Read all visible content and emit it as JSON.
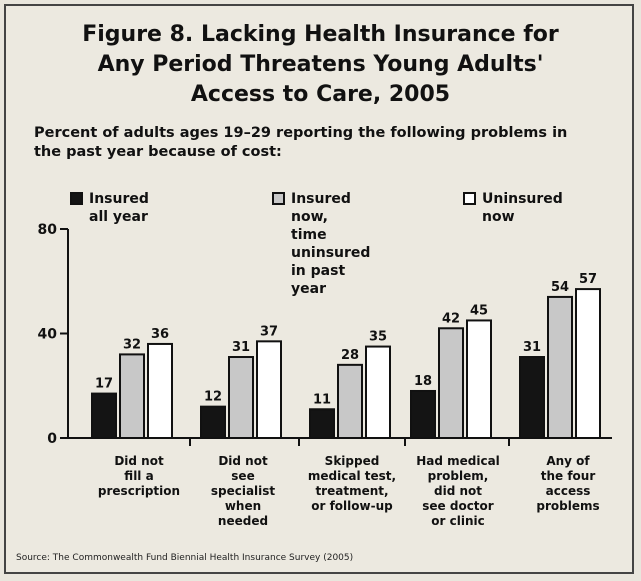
{
  "chart_data": {
    "type": "bar",
    "title": "Figure 8. Lacking Health Insurance for\nAny Period Threatens Young Adults'\nAccess to Care, 2005",
    "subtitle": "Percent of adults ages 19–29 reporting the following problems in the past year because of cost:",
    "categories": [
      "Did not\nfill a\nprescription",
      "Did not\nsee\nspecialist\nwhen\nneeded",
      "Skipped\nmedical test,\ntreatment,\nor follow-up",
      "Had medical\nproblem,\ndid not\nsee doctor\nor clinic",
      "Any of\nthe four\naccess\nproblems"
    ],
    "series": [
      {
        "name": "Insured all year",
        "values": [
          17,
          12,
          11,
          18,
          31
        ],
        "color": "#141414"
      },
      {
        "name": "Insured now,\ntime uninsured\nin past year",
        "values": [
          32,
          31,
          28,
          42,
          54
        ],
        "color": "#c8c8c8"
      },
      {
        "name": "Uninsured now",
        "values": [
          36,
          37,
          35,
          45,
          57
        ],
        "color": "#ffffff"
      }
    ],
    "data_labels": [
      [
        "17",
        "12",
        "11",
        "18",
        "31"
      ],
      [
        "32",
        "31",
        "28",
        "42",
        "54"
      ],
      [
        "36",
        "37",
        "35",
        "45",
        "57"
      ]
    ],
    "yticks": [
      "0",
      "40",
      "80"
    ],
    "ylim": [
      0,
      80
    ],
    "xlabel": "",
    "ylabel": "",
    "grid": false,
    "legend_position": "top"
  },
  "source": "Source: The Commonwealth Fund Biennial Health Insurance Survey (2005)"
}
